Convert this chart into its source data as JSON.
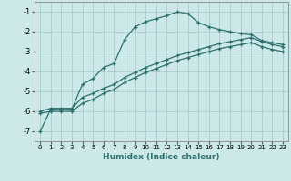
{
  "xlabel": "Humidex (Indice chaleur)",
  "background_color": "#cce8e8",
  "grid_color": "#aacccc",
  "line_color": "#2d7070",
  "xlim": [
    -0.5,
    23.5
  ],
  "ylim": [
    -7.5,
    -0.5
  ],
  "yticks": [
    -7,
    -6,
    -5,
    -4,
    -3,
    -2,
    -1
  ],
  "xticks": [
    0,
    1,
    2,
    3,
    4,
    5,
    6,
    7,
    8,
    9,
    10,
    11,
    12,
    13,
    14,
    15,
    16,
    17,
    18,
    19,
    20,
    21,
    22,
    23
  ],
  "line1_x": [
    0,
    1,
    2,
    3,
    4,
    5,
    6,
    7,
    8,
    9,
    10,
    11,
    12,
    13,
    14,
    15,
    16,
    17,
    18,
    19,
    20,
    21,
    22,
    23
  ],
  "line1_y": [
    -7.0,
    -5.9,
    -5.9,
    -5.9,
    -4.65,
    -4.35,
    -3.8,
    -3.6,
    -2.4,
    -1.75,
    -1.5,
    -1.35,
    -1.2,
    -1.0,
    -1.1,
    -1.55,
    -1.75,
    -1.9,
    -2.0,
    -2.1,
    -2.15,
    -2.45,
    -2.55,
    -2.65
  ],
  "line2_x": [
    0,
    1,
    2,
    3,
    4,
    5,
    6,
    7,
    8,
    9,
    10,
    11,
    12,
    13,
    14,
    15,
    16,
    17,
    18,
    19,
    20,
    21,
    22,
    23
  ],
  "line2_y": [
    -6.0,
    -5.85,
    -5.85,
    -5.85,
    -5.3,
    -5.1,
    -4.85,
    -4.65,
    -4.3,
    -4.05,
    -3.8,
    -3.6,
    -3.4,
    -3.2,
    -3.05,
    -2.9,
    -2.75,
    -2.6,
    -2.5,
    -2.4,
    -2.3,
    -2.5,
    -2.65,
    -2.75
  ],
  "line3_x": [
    0,
    1,
    2,
    3,
    4,
    5,
    6,
    7,
    8,
    9,
    10,
    11,
    12,
    13,
    14,
    15,
    16,
    17,
    18,
    19,
    20,
    21,
    22,
    23
  ],
  "line3_y": [
    -6.1,
    -6.0,
    -6.0,
    -6.0,
    -5.6,
    -5.4,
    -5.1,
    -4.9,
    -4.55,
    -4.3,
    -4.05,
    -3.85,
    -3.65,
    -3.45,
    -3.3,
    -3.15,
    -3.0,
    -2.85,
    -2.75,
    -2.65,
    -2.55,
    -2.75,
    -2.9,
    -3.0
  ]
}
